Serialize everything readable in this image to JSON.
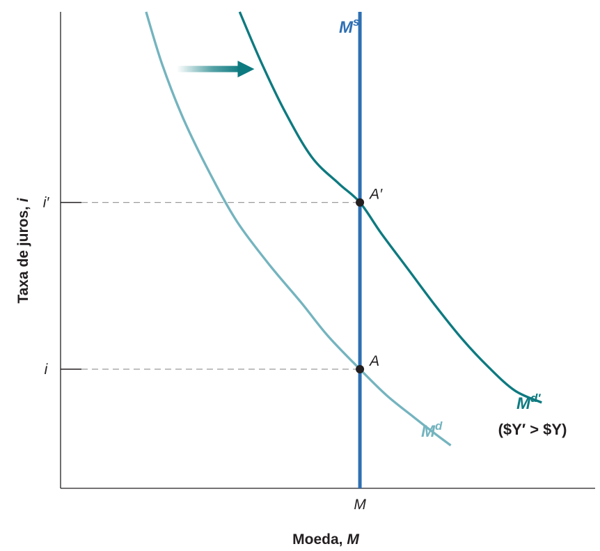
{
  "chart_data": {
    "type": "line",
    "title": "",
    "xlabel_text": "Moeda, ",
    "xlabel_var": "M",
    "ylabel_text": "Taxa de juros, ",
    "ylabel_var": "i",
    "xlim": [
      0,
      10
    ],
    "ylim": [
      0,
      10
    ],
    "x_ticks": [
      {
        "label": "M",
        "value": 5.6
      }
    ],
    "y_ticks": [
      {
        "label": "i",
        "value": 2.5
      },
      {
        "label": "i′",
        "value": 6.0
      }
    ],
    "series": [
      {
        "name": "Md",
        "label_main": "M",
        "label_sup": "d",
        "color": "#74b4bf",
        "x": [
          1.6,
          1.9,
          2.3,
          2.8,
          3.3,
          3.9,
          4.5,
          5.0,
          5.6,
          6.1,
          6.6,
          7.0,
          7.3
        ],
        "y": [
          10.0,
          8.9,
          7.75,
          6.6,
          5.6,
          4.7,
          3.9,
          3.2,
          2.5,
          1.95,
          1.5,
          1.15,
          0.9
        ]
      },
      {
        "name": "Md′",
        "label_main": "M",
        "label_sup": "d′",
        "color": "#0d7a80",
        "x": [
          3.35,
          3.75,
          4.2,
          4.7,
          5.2,
          5.6,
          6.0,
          6.5,
          7.0,
          7.5,
          8.0,
          8.5,
          9.0
        ],
        "y": [
          10.0,
          8.95,
          7.9,
          6.95,
          6.4,
          6.0,
          5.35,
          4.6,
          3.85,
          3.15,
          2.55,
          2.05,
          1.8
        ]
      }
    ],
    "supply": {
      "name": "Ms",
      "label_main": "M",
      "label_sup": "s",
      "x": 5.6,
      "color": "#2e6fb3"
    },
    "points": [
      {
        "label": "A",
        "x": 5.6,
        "y": 2.5
      },
      {
        "label": "A′",
        "x": 5.6,
        "y": 6.0
      }
    ],
    "note": "($Y′ > $Y)",
    "shift_arrow": {
      "from": [
        2.2,
        8.8
      ],
      "to": [
        3.6,
        8.8
      ],
      "color": "#0d7a80"
    }
  }
}
